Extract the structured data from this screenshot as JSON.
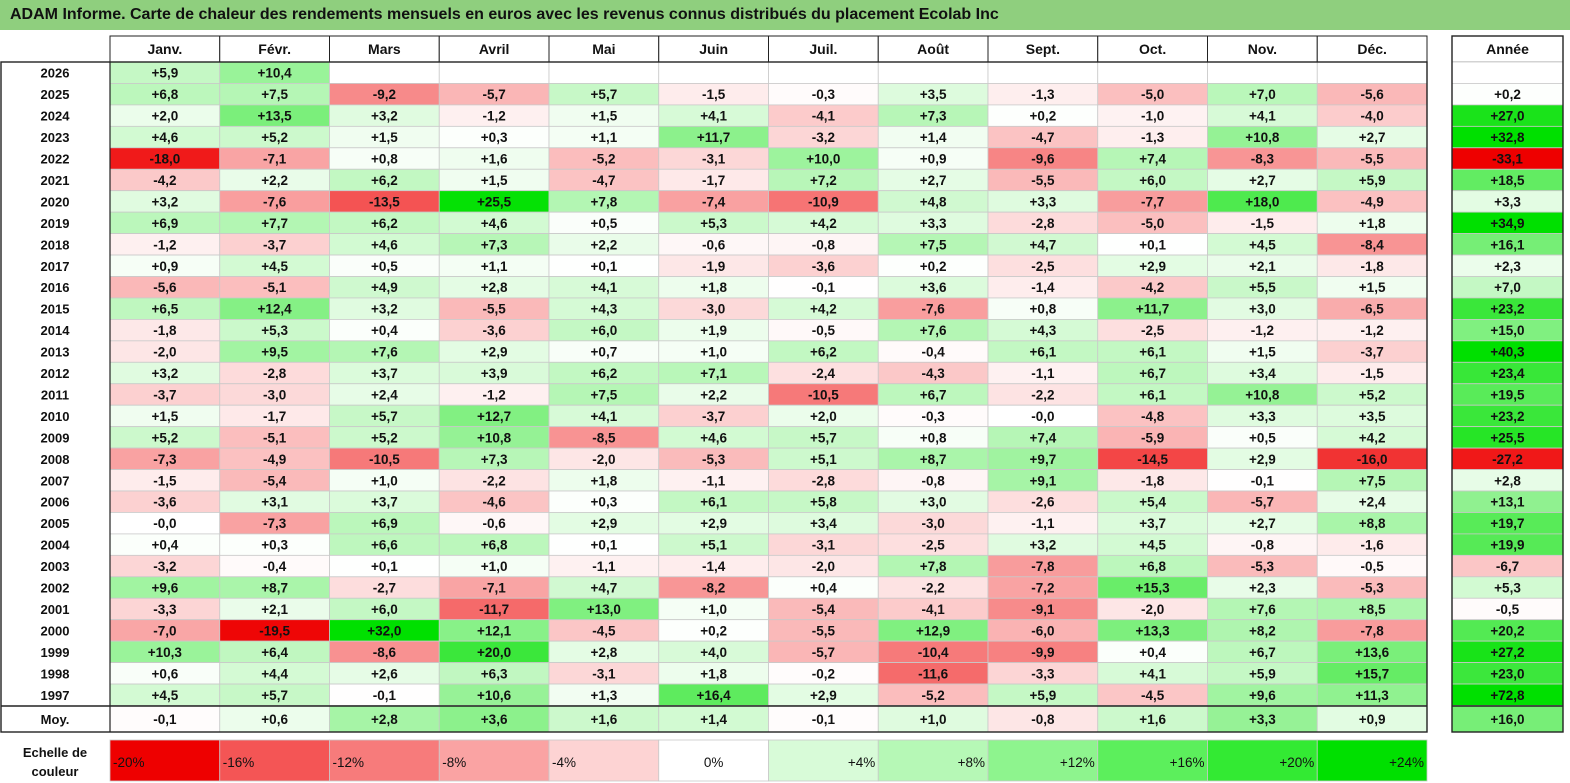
{
  "title": "ADAM Informe. Carte de chaleur des rendements mensuels en euros avec les revenus connus distribués du placement Ecolab Inc",
  "chart_data": {
    "type": "heatmap",
    "months": [
      "Janv.",
      "Févr.",
      "Mars",
      "Avril",
      "Mai",
      "Juin",
      "Juil.",
      "Août",
      "Sept.",
      "Oct.",
      "Nov.",
      "Déc."
    ],
    "year_header": "Année",
    "rows": [
      {
        "label": "2026",
        "values": [
          "+5,9",
          "+10,4",
          "",
          "",
          "",
          "",
          "",
          "",
          "",
          "",
          "",
          ""
        ],
        "annual": ""
      },
      {
        "label": "2025",
        "values": [
          "+6,8",
          "+7,5",
          "-9,2",
          "-5,7",
          "+5,7",
          "-1,5",
          "-0,3",
          "+3,5",
          "-1,3",
          "-5,0",
          "+7,0",
          "-5,6"
        ],
        "annual": "+0,2"
      },
      {
        "label": "2024",
        "values": [
          "+2,0",
          "+13,5",
          "+3,2",
          "-1,2",
          "+1,5",
          "+4,1",
          "-4,1",
          "+7,3",
          "+0,2",
          "-1,0",
          "+4,1",
          "-4,0"
        ],
        "annual": "+27,0"
      },
      {
        "label": "2023",
        "values": [
          "+4,6",
          "+5,2",
          "+1,5",
          "+0,3",
          "+1,1",
          "+11,7",
          "-3,2",
          "+1,4",
          "-4,7",
          "-1,3",
          "+10,8",
          "+2,7"
        ],
        "annual": "+32,8"
      },
      {
        "label": "2022",
        "values": [
          "-18,0",
          "-7,1",
          "+0,8",
          "+1,6",
          "-5,2",
          "-3,1",
          "+10,0",
          "+0,9",
          "-9,6",
          "+7,4",
          "-8,3",
          "-5,5"
        ],
        "annual": "-33,1"
      },
      {
        "label": "2021",
        "values": [
          "-4,2",
          "+2,2",
          "+6,2",
          "+1,5",
          "-4,7",
          "-1,7",
          "+7,2",
          "+2,7",
          "-5,5",
          "+6,0",
          "+2,7",
          "+5,9"
        ],
        "annual": "+18,5"
      },
      {
        "label": "2020",
        "values": [
          "+3,2",
          "-7,6",
          "-13,5",
          "+25,5",
          "+7,8",
          "-7,4",
          "-10,9",
          "+4,8",
          "+3,3",
          "-7,7",
          "+18,0",
          "-4,9"
        ],
        "annual": "+3,3"
      },
      {
        "label": "2019",
        "values": [
          "+6,9",
          "+7,7",
          "+6,2",
          "+4,6",
          "+0,5",
          "+5,3",
          "+4,2",
          "+3,3",
          "-2,8",
          "-5,0",
          "-1,5",
          "+1,8"
        ],
        "annual": "+34,9"
      },
      {
        "label": "2018",
        "values": [
          "-1,2",
          "-3,7",
          "+4,6",
          "+7,3",
          "+2,2",
          "-0,6",
          "-0,8",
          "+7,5",
          "+4,7",
          "+0,1",
          "+4,5",
          "-8,4"
        ],
        "annual": "+16,1"
      },
      {
        "label": "2017",
        "values": [
          "+0,9",
          "+4,5",
          "+0,5",
          "+1,1",
          "+0,1",
          "-1,9",
          "-3,6",
          "+0,2",
          "-2,5",
          "+2,9",
          "+2,1",
          "-1,8"
        ],
        "annual": "+2,3"
      },
      {
        "label": "2016",
        "values": [
          "-5,6",
          "-5,1",
          "+4,9",
          "+2,8",
          "+4,1",
          "+1,8",
          "-0,1",
          "+3,6",
          "-1,4",
          "-4,2",
          "+5,5",
          "+1,5"
        ],
        "annual": "+7,0"
      },
      {
        "label": "2015",
        "values": [
          "+6,5",
          "+12,4",
          "+3,2",
          "-5,5",
          "+4,3",
          "-3,0",
          "+4,2",
          "-7,6",
          "+0,8",
          "+11,7",
          "+3,0",
          "-6,5"
        ],
        "annual": "+23,2"
      },
      {
        "label": "2014",
        "values": [
          "-1,8",
          "+5,3",
          "+0,4",
          "-3,6",
          "+6,0",
          "+1,9",
          "-0,5",
          "+7,6",
          "+4,3",
          "-2,5",
          "-1,2",
          "-1,2"
        ],
        "annual": "+15,0"
      },
      {
        "label": "2013",
        "values": [
          "-2,0",
          "+9,5",
          "+7,6",
          "+2,9",
          "+0,7",
          "+1,0",
          "+6,2",
          "-0,4",
          "+6,1",
          "+6,1",
          "+1,5",
          "-3,7"
        ],
        "annual": "+40,3"
      },
      {
        "label": "2012",
        "values": [
          "+3,2",
          "-2,8",
          "+3,7",
          "+3,9",
          "+6,2",
          "+7,1",
          "-2,4",
          "-4,3",
          "-1,1",
          "+6,7",
          "+3,4",
          "-1,5"
        ],
        "annual": "+23,4"
      },
      {
        "label": "2011",
        "values": [
          "-3,7",
          "-3,0",
          "+2,4",
          "-1,2",
          "+7,5",
          "+2,2",
          "-10,5",
          "+6,7",
          "-2,2",
          "+6,1",
          "+10,8",
          "+5,2"
        ],
        "annual": "+19,5"
      },
      {
        "label": "2010",
        "values": [
          "+1,5",
          "-1,7",
          "+5,7",
          "+12,7",
          "+4,1",
          "-3,7",
          "+2,0",
          "-0,3",
          "-0,0",
          "-4,8",
          "+3,3",
          "+3,5"
        ],
        "annual": "+23,2"
      },
      {
        "label": "2009",
        "values": [
          "+5,2",
          "-5,1",
          "+5,2",
          "+10,8",
          "-8,5",
          "+4,6",
          "+5,7",
          "+0,8",
          "+7,4",
          "-5,9",
          "+0,5",
          "+4,2"
        ],
        "annual": "+25,5"
      },
      {
        "label": "2008",
        "values": [
          "-7,3",
          "-4,9",
          "-10,5",
          "+7,3",
          "-2,0",
          "-5,3",
          "+5,1",
          "+8,7",
          "+9,7",
          "-14,5",
          "+2,9",
          "-16,0"
        ],
        "annual": "-27,2"
      },
      {
        "label": "2007",
        "values": [
          "-1,5",
          "-5,4",
          "+1,0",
          "-2,2",
          "+1,8",
          "-1,1",
          "-2,8",
          "-0,8",
          "+9,1",
          "-1,8",
          "-0,1",
          "+7,5"
        ],
        "annual": "+2,8"
      },
      {
        "label": "2006",
        "values": [
          "-3,6",
          "+3,1",
          "+3,7",
          "-4,6",
          "+0,3",
          "+6,1",
          "+5,8",
          "+3,0",
          "-2,6",
          "+5,4",
          "-5,7",
          "+2,4"
        ],
        "annual": "+13,1"
      },
      {
        "label": "2005",
        "values": [
          "-0,0",
          "-7,3",
          "+6,9",
          "-0,6",
          "+2,9",
          "+2,9",
          "+3,4",
          "-3,0",
          "-1,1",
          "+3,7",
          "+2,7",
          "+8,8"
        ],
        "annual": "+19,7"
      },
      {
        "label": "2004",
        "values": [
          "+0,4",
          "+0,3",
          "+6,6",
          "+6,8",
          "+0,1",
          "+5,1",
          "-3,1",
          "-2,5",
          "+3,2",
          "+4,5",
          "-0,8",
          "-1,6"
        ],
        "annual": "+19,9"
      },
      {
        "label": "2003",
        "values": [
          "-3,2",
          "-0,4",
          "+0,1",
          "+1,0",
          "-1,1",
          "-1,4",
          "-2,0",
          "+7,8",
          "-7,8",
          "+6,8",
          "-5,3",
          "-0,5"
        ],
        "annual": "-6,7"
      },
      {
        "label": "2002",
        "values": [
          "+9,6",
          "+8,7",
          "-2,7",
          "-7,1",
          "+4,7",
          "-8,2",
          "+0,4",
          "-2,2",
          "-7,2",
          "+15,3",
          "+2,3",
          "-5,3"
        ],
        "annual": "+5,3"
      },
      {
        "label": "2001",
        "values": [
          "-3,3",
          "+2,1",
          "+6,0",
          "-11,7",
          "+13,0",
          "+1,0",
          "-5,4",
          "-4,1",
          "-9,1",
          "-2,0",
          "+7,6",
          "+8,5"
        ],
        "annual": "-0,5"
      },
      {
        "label": "2000",
        "values": [
          "-7,0",
          "-19,5",
          "+32,0",
          "+12,1",
          "-4,5",
          "+0,2",
          "-5,5",
          "+12,9",
          "-6,0",
          "+13,3",
          "+8,2",
          "-7,8"
        ],
        "annual": "+20,2"
      },
      {
        "label": "1999",
        "values": [
          "+10,3",
          "+6,4",
          "-8,6",
          "+20,0",
          "+2,8",
          "+4,0",
          "-5,7",
          "-10,4",
          "-9,9",
          "+0,4",
          "+6,7",
          "+13,6"
        ],
        "annual": "+27,2"
      },
      {
        "label": "1998",
        "values": [
          "+0,6",
          "+4,4",
          "+2,6",
          "+6,3",
          "-3,1",
          "+1,8",
          "-0,2",
          "-11,6",
          "-3,3",
          "+4,1",
          "+5,9",
          "+15,7"
        ],
        "annual": "+23,0"
      },
      {
        "label": "1997",
        "values": [
          "+4,5",
          "+5,7",
          "-0,1",
          "+10,6",
          "+1,3",
          "+16,4",
          "+2,9",
          "-5,2",
          "+5,9",
          "-4,5",
          "+9,6",
          "+11,3"
        ],
        "annual": "+72,8"
      }
    ],
    "average": {
      "label": "Moy.",
      "values": [
        "-0,1",
        "+0,6",
        "+2,8",
        "+3,6",
        "+1,6",
        "+1,4",
        "-0,1",
        "+1,0",
        "-0,8",
        "+1,6",
        "+3,3",
        "+0,9"
      ],
      "annual": "+16,0"
    },
    "scale": {
      "label_line1": "Echelle de",
      "label_line2": "couleur",
      "stops": [
        "-20%",
        "-16%",
        "-12%",
        "-8%",
        "-4%",
        "0%",
        "+4%",
        "+8%",
        "+12%",
        "+16%",
        "+20%",
        "+24%"
      ],
      "colors": [
        "#ee0000",
        "#f45555",
        "#f77b7b",
        "#faa3a3",
        "#fdd3d3",
        "#ffffff",
        "#d8fbd8",
        "#b6f8b6",
        "#8ef48e",
        "#5cef5c",
        "#33ea33",
        "#00e000"
      ]
    }
  }
}
